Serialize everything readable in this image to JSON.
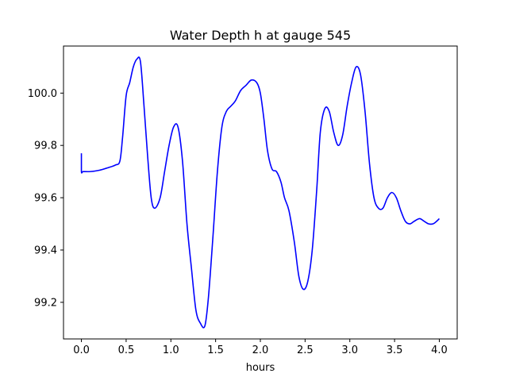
{
  "chart_data": {
    "type": "line",
    "title": "Water Depth h at gauge 545",
    "xlabel": "hours",
    "ylabel": "",
    "xlim": [
      -0.2,
      4.2
    ],
    "ylim": [
      99.06,
      100.18
    ],
    "xticks": [
      0.0,
      0.5,
      1.0,
      1.5,
      2.0,
      2.5,
      3.0,
      3.5,
      4.0
    ],
    "xtick_labels": [
      "0.0",
      "0.5",
      "1.0",
      "1.5",
      "2.0",
      "2.5",
      "3.0",
      "3.5",
      "4.0"
    ],
    "yticks": [
      99.2,
      99.4,
      99.6,
      99.8,
      100.0
    ],
    "ytick_labels": [
      "99.2",
      "99.4",
      "99.6",
      "99.8",
      "100.0"
    ],
    "grid": false,
    "series": [
      {
        "color": "#0000ff",
        "x": [
          0.0,
          0.0,
          0.02,
          0.1,
          0.2,
          0.3,
          0.38,
          0.43,
          0.46,
          0.5,
          0.54,
          0.58,
          0.62,
          0.66,
          0.7,
          0.74,
          0.78,
          0.82,
          0.88,
          0.93,
          0.98,
          1.03,
          1.08,
          1.13,
          1.18,
          1.23,
          1.28,
          1.33,
          1.38,
          1.42,
          1.47,
          1.52,
          1.57,
          1.62,
          1.67,
          1.72,
          1.78,
          1.84,
          1.9,
          1.96,
          2.0,
          2.04,
          2.08,
          2.13,
          2.18,
          2.23,
          2.27,
          2.32,
          2.38,
          2.43,
          2.48,
          2.53,
          2.58,
          2.63,
          2.67,
          2.72,
          2.77,
          2.82,
          2.87,
          2.92,
          2.97,
          3.02,
          3.07,
          3.12,
          3.17,
          3.22,
          3.27,
          3.32,
          3.37,
          3.42,
          3.47,
          3.52,
          3.57,
          3.62,
          3.67,
          3.72,
          3.78,
          3.83,
          3.88,
          3.93,
          3.97,
          4.0
        ],
        "y": [
          99.77,
          99.7,
          99.7,
          99.7,
          99.705,
          99.715,
          99.725,
          99.74,
          99.83,
          99.99,
          100.04,
          100.1,
          100.13,
          100.12,
          99.95,
          99.76,
          99.6,
          99.56,
          99.6,
          99.7,
          99.8,
          99.87,
          99.87,
          99.74,
          99.5,
          99.33,
          99.17,
          99.12,
          99.11,
          99.22,
          99.45,
          99.7,
          99.87,
          99.93,
          99.95,
          99.97,
          100.01,
          100.03,
          100.05,
          100.04,
          100.0,
          99.9,
          99.78,
          99.71,
          99.7,
          99.66,
          99.6,
          99.55,
          99.43,
          99.3,
          99.25,
          99.28,
          99.4,
          99.63,
          99.85,
          99.94,
          99.93,
          99.85,
          99.8,
          99.84,
          99.95,
          100.04,
          100.1,
          100.07,
          99.93,
          99.73,
          99.6,
          99.56,
          99.56,
          99.6,
          99.62,
          99.6,
          99.55,
          99.51,
          99.5,
          99.51,
          99.52,
          99.51,
          99.5,
          99.5,
          99.51,
          99.52
        ]
      }
    ]
  }
}
